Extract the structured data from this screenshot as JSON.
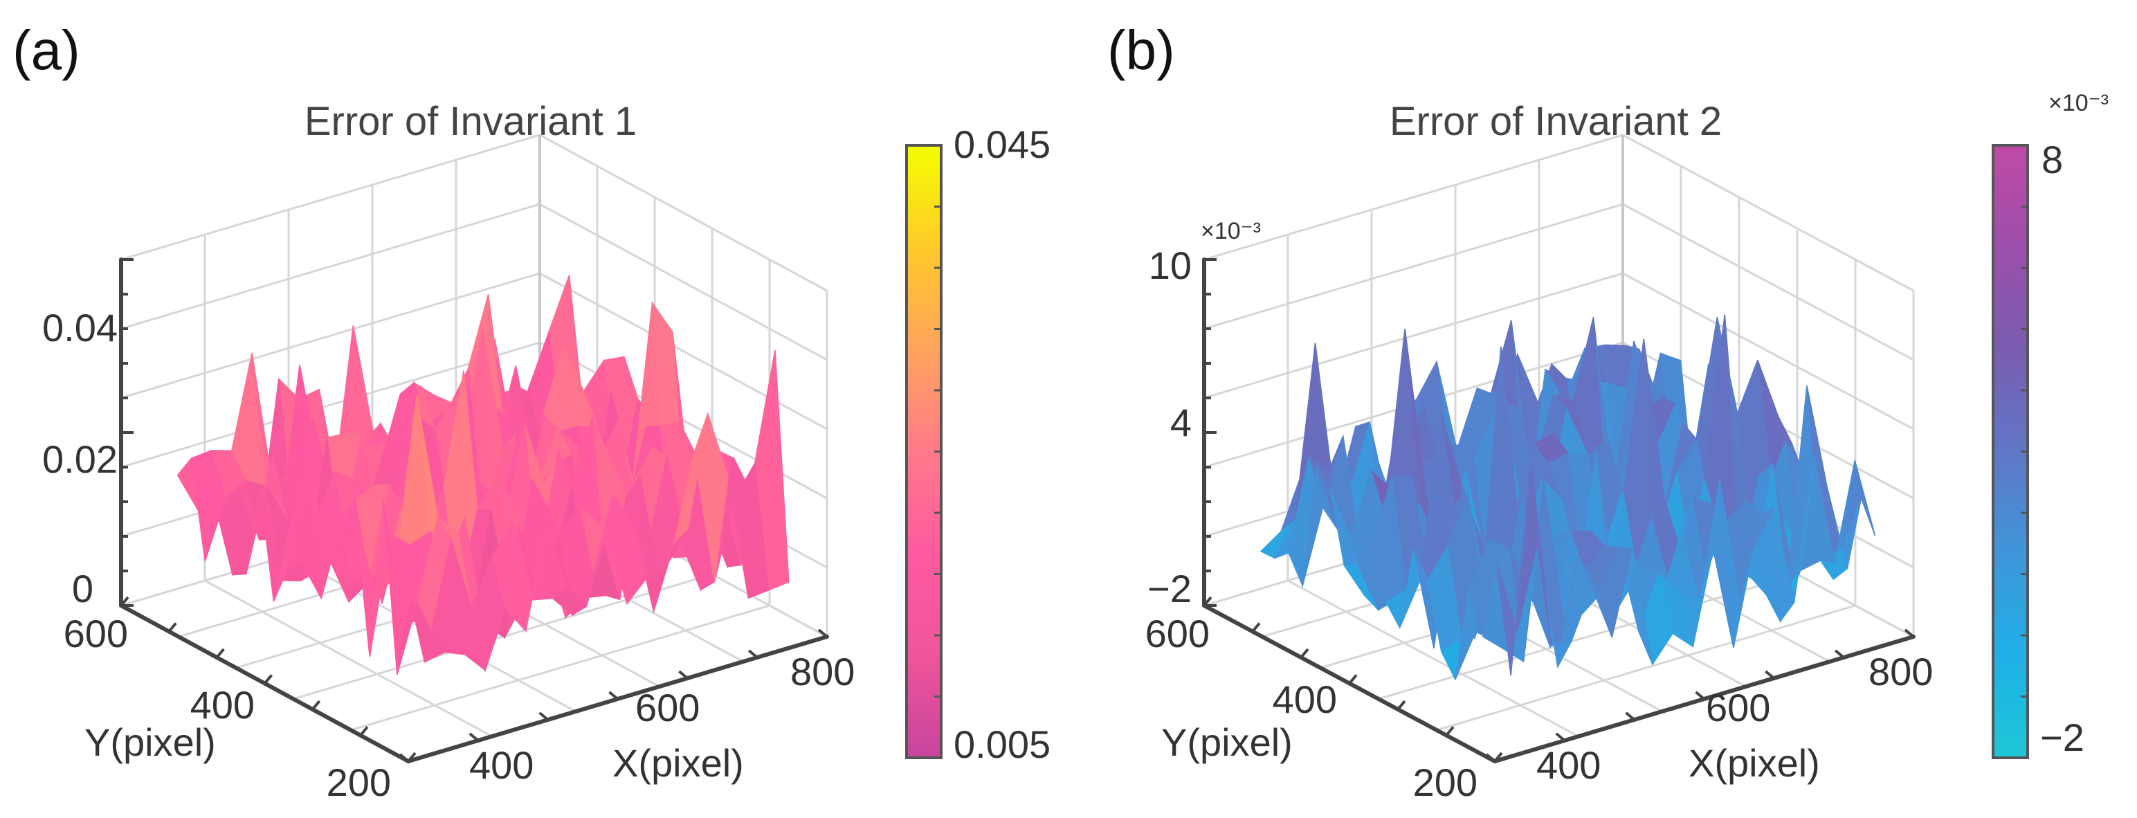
{
  "chart_data": [
    {
      "panel_label": "(a)",
      "type": "surface3d",
      "title": "Error of Invariant 1",
      "xlabel": "X(pixel)",
      "ylabel": "Y(pixel)",
      "zlabel": "",
      "x_ticks": [
        "400",
        "600",
        "800"
      ],
      "y_ticks": [
        "200",
        "400",
        "600"
      ],
      "z_ticks": [
        "0",
        "0.02",
        "0.04"
      ],
      "xlim": [
        300,
        850
      ],
      "ylim": [
        150,
        650
      ],
      "zlim": [
        0,
        0.05
      ],
      "colorbar": {
        "min": 0.005,
        "max": 0.045,
        "tick_labels": [
          "0.005",
          "0.045"
        ],
        "exponent": "",
        "colors": [
          "#c7449e",
          "#f0559a",
          "#ff5aa0",
          "#ff7a8a",
          "#ffa45c",
          "#ffca2a",
          "#f4ff00"
        ]
      },
      "surface": {
        "z_min": 0.004,
        "z_mean": 0.017,
        "z_max": 0.042,
        "grid": 18,
        "seed": 7
      }
    },
    {
      "panel_label": "(b)",
      "type": "surface3d",
      "title": "Error of Invariant 2",
      "xlabel": "X(pixel)",
      "ylabel": "Y(pixel)",
      "zlabel": "",
      "x_ticks": [
        "400",
        "600",
        "800"
      ],
      "y_ticks": [
        "200",
        "400",
        "600"
      ],
      "z_ticks": [
        "−2",
        "4",
        "10"
      ],
      "z_exponent": "×10⁻³",
      "xlim": [
        300,
        850
      ],
      "ylim": [
        150,
        650
      ],
      "zlim": [
        -2,
        10
      ],
      "colorbar": {
        "min": -2,
        "max": 8,
        "tick_labels": [
          "−2",
          "8"
        ],
        "exponent": "×10⁻³",
        "colors": [
          "#1ec7d6",
          "#1fb0e6",
          "#3f96da",
          "#6077c6",
          "#7a5db2",
          "#9c4fab",
          "#c04aa6"
        ]
      },
      "surface": {
        "z_min": -1.8,
        "z_mean": 1.8,
        "z_max": 8.6,
        "grid": 18,
        "seed": 3
      }
    }
  ]
}
